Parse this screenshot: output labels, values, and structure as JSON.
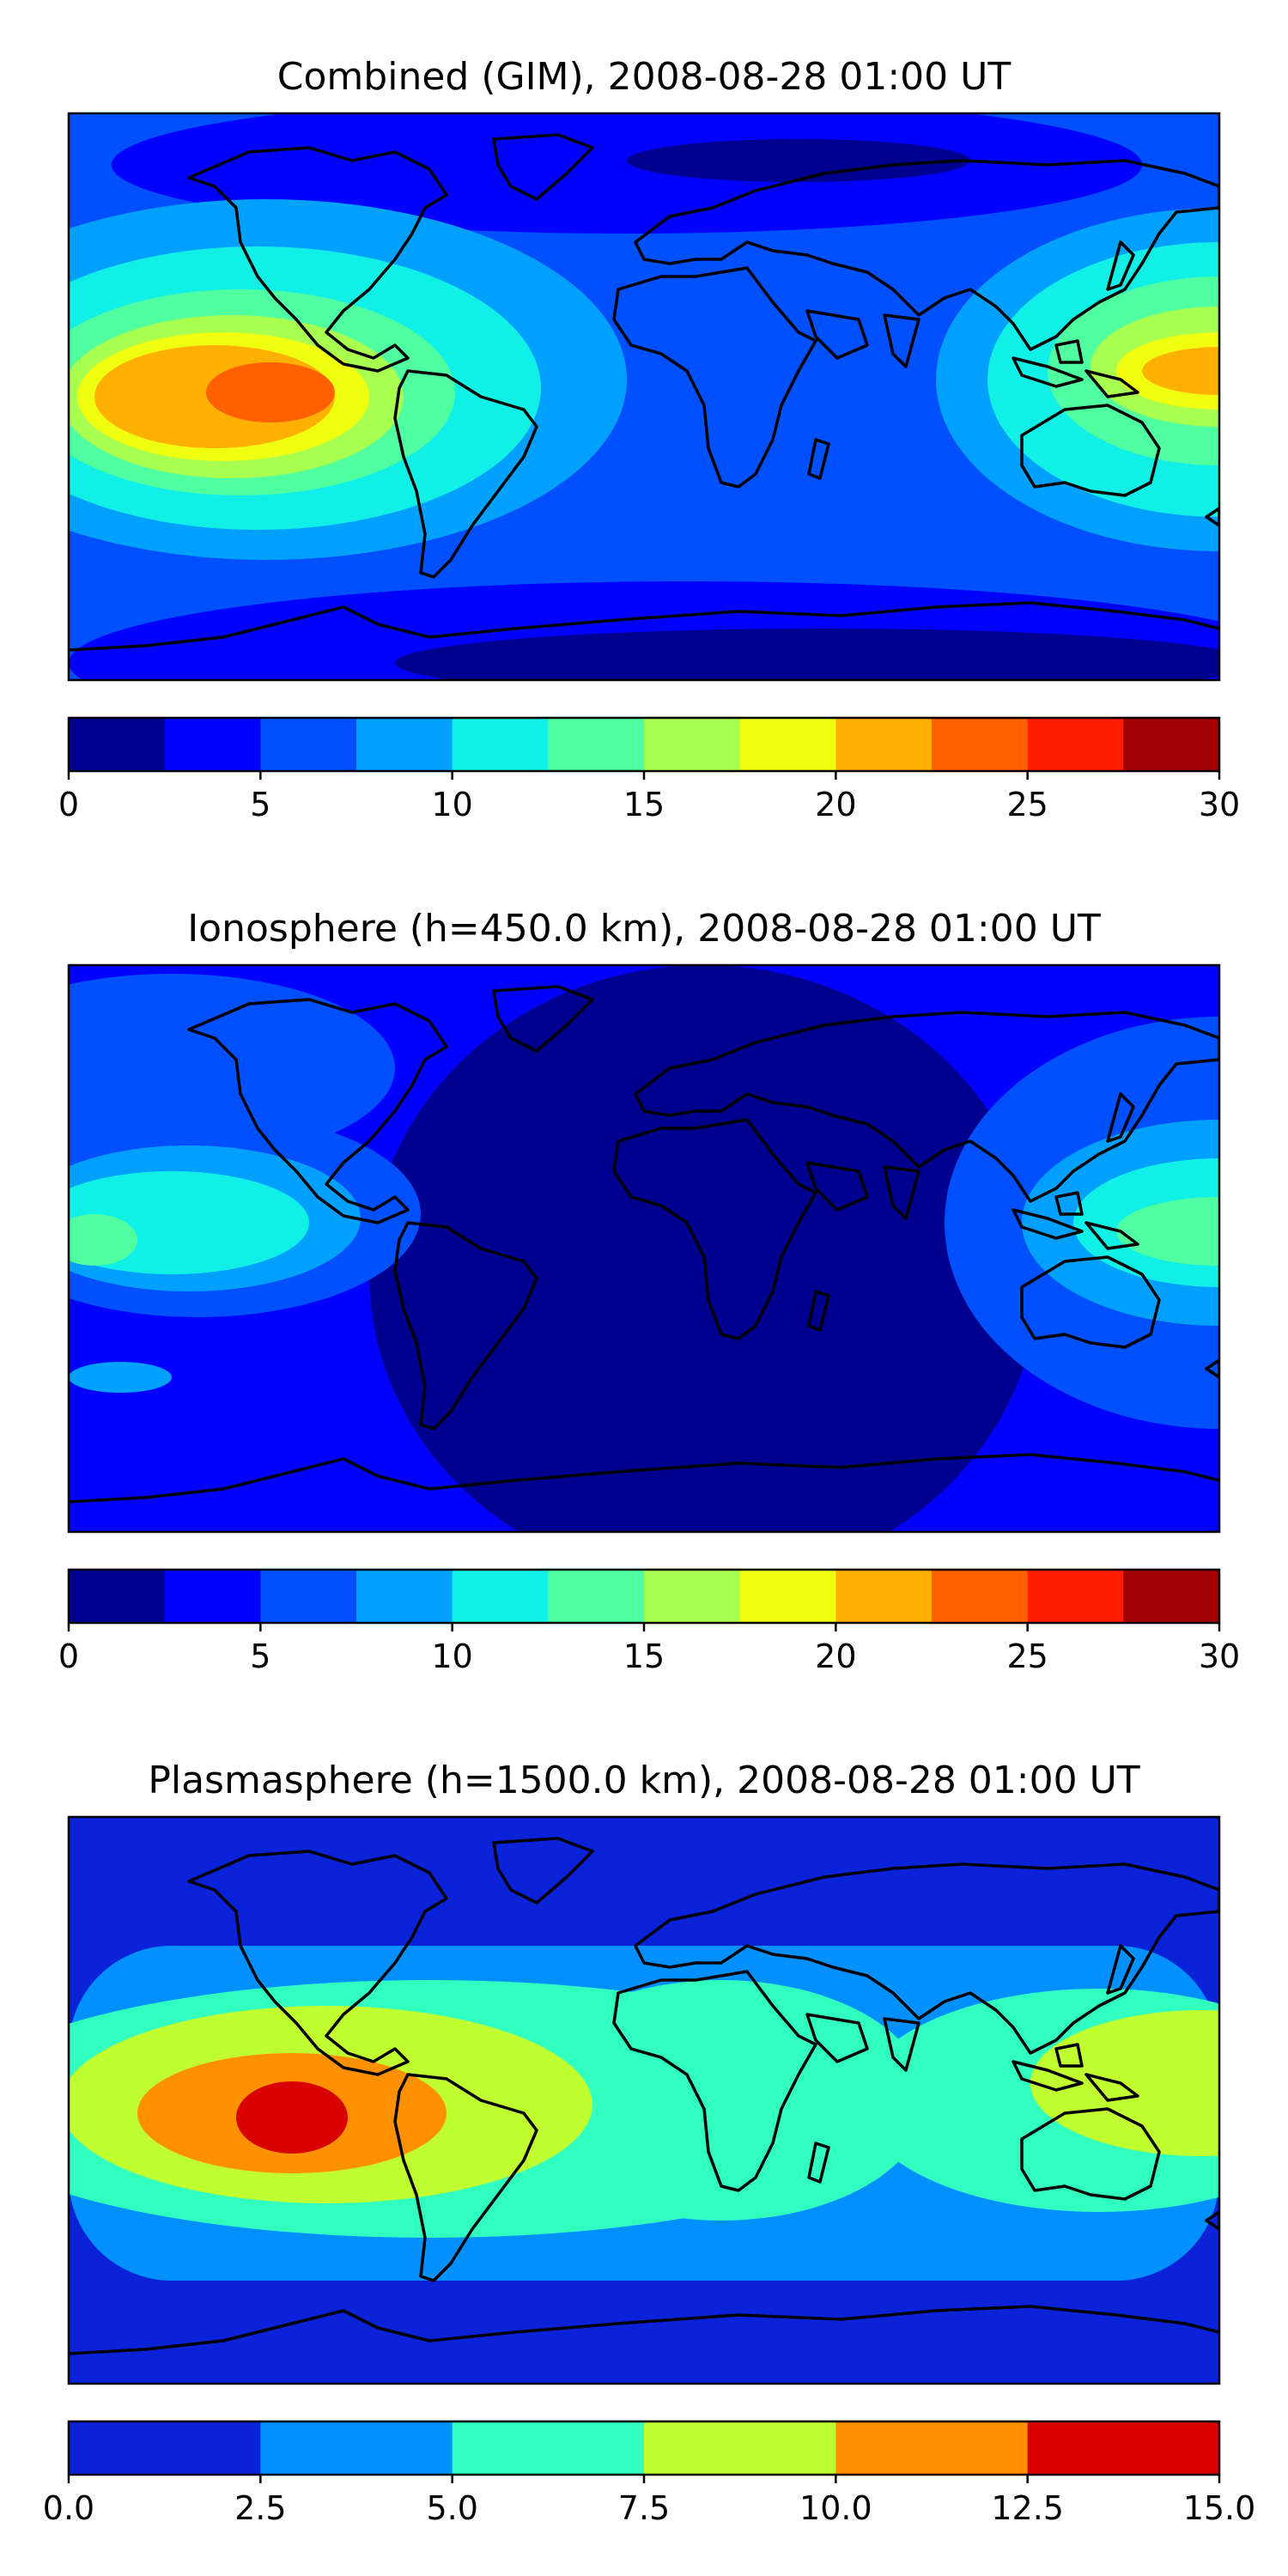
{
  "colors": {
    "ionosphere_base": "#0b1a9e",
    "plasmasphere_base": "#0a24d6",
    "coast": "#000000"
  },
  "panels": [
    {
      "title": "Combined (GIM), 2008-08-28 01:00 UT",
      "base_color": "#2a58f0",
      "colorbar": {
        "colors": [
          "#00008f",
          "#0000ff",
          "#0050ff",
          "#00a0ff",
          "#10f0e6",
          "#50ffa0",
          "#a8ff50",
          "#f0ff10",
          "#ffb000",
          "#ff6000",
          "#ff1e00",
          "#a00000"
        ],
        "ticks": [
          "0",
          "5",
          "10",
          "15",
          "20",
          "25",
          "30"
        ]
      }
    },
    {
      "title": "Ionosphere  (h=450.0 km), 2008-08-28 01:00 UT",
      "base_color": "#0a18a8",
      "colorbar": {
        "colors": [
          "#00008f",
          "#0000ff",
          "#0050ff",
          "#00a0ff",
          "#10f0e6",
          "#50ffa0",
          "#a8ff50",
          "#f0ff10",
          "#ffb000",
          "#ff6000",
          "#ff1e00",
          "#a00000"
        ],
        "ticks": [
          "0",
          "5",
          "10",
          "15",
          "20",
          "25",
          "30"
        ]
      }
    },
    {
      "title": "Plasmasphere (h=1500.0 km), 2008-08-28 01:00 UT",
      "base_color": "#0a22d8",
      "colorbar": {
        "colors": [
          "#0a22d8",
          "#0090ff",
          "#30ffc0",
          "#c0ff30",
          "#ff9000",
          "#d80000"
        ],
        "ticks": [
          "0.0",
          "2.5",
          "5.0",
          "7.5",
          "10.0",
          "12.5",
          "15.0"
        ]
      }
    }
  ]
}
